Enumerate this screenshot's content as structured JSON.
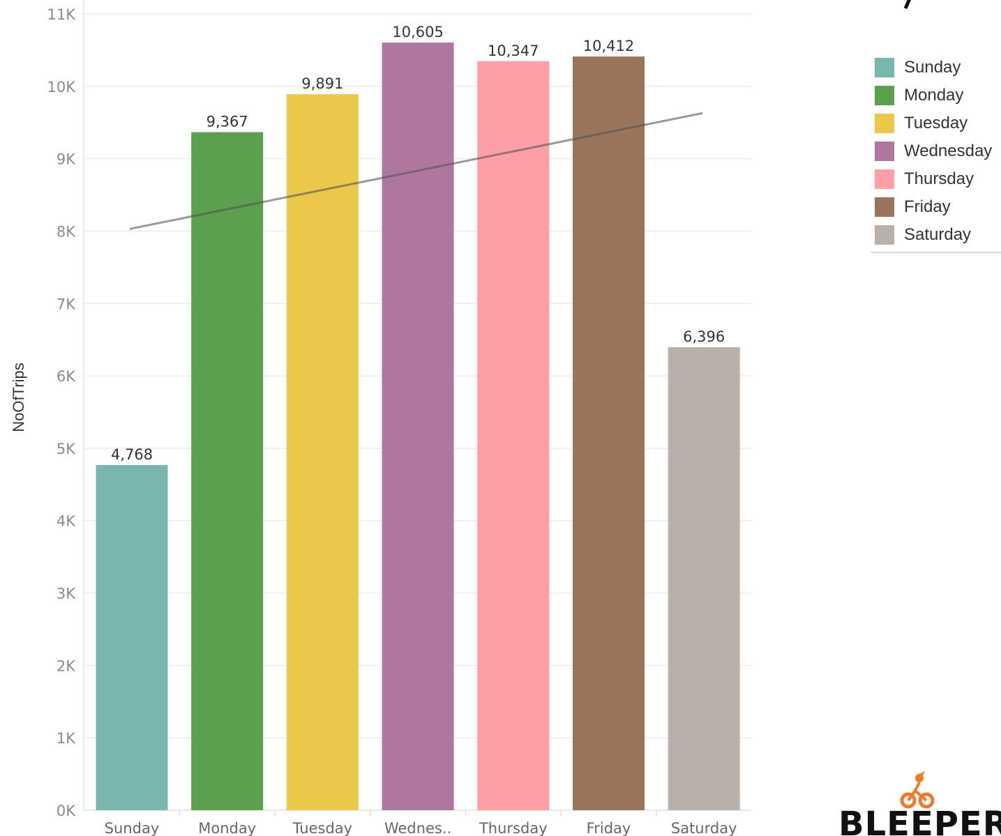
{
  "chart_data": {
    "type": "bar",
    "title": "",
    "xlabel": "",
    "ylabel": "NoOfTrips",
    "ylim": [
      0,
      11000
    ],
    "y_ticks": [
      0,
      1000,
      2000,
      3000,
      4000,
      5000,
      6000,
      7000,
      8000,
      9000,
      10000,
      11000
    ],
    "y_tick_labels": [
      "0K",
      "1K",
      "2K",
      "3K",
      "4K",
      "5K",
      "6K",
      "7K",
      "8K",
      "9K",
      "10K",
      "11K"
    ],
    "categories": [
      "Sunday",
      "Monday",
      "Tuesday",
      "Wednesday",
      "Thursday",
      "Friday",
      "Saturday"
    ],
    "category_tick_labels": [
      "Sunday",
      "Monday",
      "Tuesday",
      "Wednes..",
      "Thursday",
      "Friday",
      "Saturday"
    ],
    "values": [
      4768,
      9367,
      9891,
      10605,
      10347,
      10412,
      6396
    ],
    "value_labels": [
      "4,768",
      "9,367",
      "9,891",
      "10,605",
      "10,347",
      "10,412",
      "6,396"
    ],
    "colors": [
      "#79b6b0",
      "#5b9f4f",
      "#ebc84a",
      "#b0779e",
      "#fe9ea6",
      "#9b745c",
      "#bab0ab"
    ],
    "trend_line": {
      "start_value": 8030,
      "end_value": 9630
    },
    "grid": true,
    "legend": {
      "placement": "right",
      "items": [
        {
          "label": "Sunday",
          "color": "#79b6b0"
        },
        {
          "label": "Monday",
          "color": "#5b9f4f"
        },
        {
          "label": "Tuesday",
          "color": "#ebc84a"
        },
        {
          "label": "Wednesday",
          "color": "#b0779e"
        },
        {
          "label": "Thursday",
          "color": "#fe9ea6"
        },
        {
          "label": "Friday",
          "color": "#9b745c"
        },
        {
          "label": "Saturday",
          "color": "#bab0ab"
        }
      ]
    }
  },
  "logo": {
    "text": "BLEEPER",
    "accent": "#f07a2a",
    "icon": "bicycle-icon"
  }
}
